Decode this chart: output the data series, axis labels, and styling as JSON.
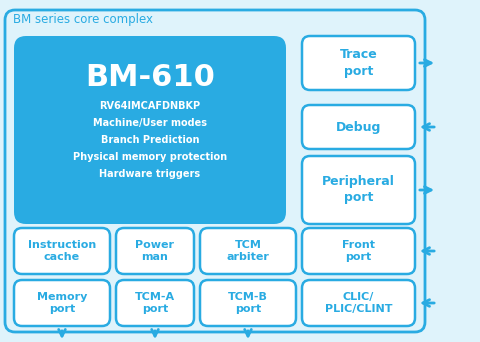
{
  "title": "BM series core complex",
  "bg_color": "#dff3fb",
  "core_bg_color": "#29abe2",
  "core_text_color": "#ffffff",
  "box_bg_color": "#ffffff",
  "box_text_color": "#29abe2",
  "border_color": "#29abe2",
  "title_color": "#29abe2",
  "arrow_color": "#29abe2",
  "core_title": "BM-610",
  "core_lines": [
    "RV64IMCAFDNBKP",
    "Machine/User modes",
    "Branch Prediction",
    "Physical memory protection",
    "Hardware triggers"
  ],
  "right_boxes": [
    {
      "label": "Trace\nport",
      "arrow_dir": "out"
    },
    {
      "label": "Debug",
      "arrow_dir": "in"
    },
    {
      "label": "Peripheral\nport",
      "arrow_dir": "out"
    }
  ],
  "row1_boxes": [
    {
      "label": "Instruction\ncache",
      "arrow_dir": "none"
    },
    {
      "label": "Power\nman",
      "arrow_dir": "none"
    },
    {
      "label": "TCM\narbiter",
      "arrow_dir": "none"
    },
    {
      "label": "Front\nport",
      "arrow_dir": "in"
    }
  ],
  "row2_boxes": [
    {
      "label": "Memory\nport",
      "arrow_dir": "none"
    },
    {
      "label": "TCM-A\nport",
      "arrow_dir": "none"
    },
    {
      "label": "TCM-B\nport",
      "arrow_dir": "none"
    },
    {
      "label": "CLIC/\nPLIC/CLINT",
      "arrow_dir": "in"
    }
  ]
}
